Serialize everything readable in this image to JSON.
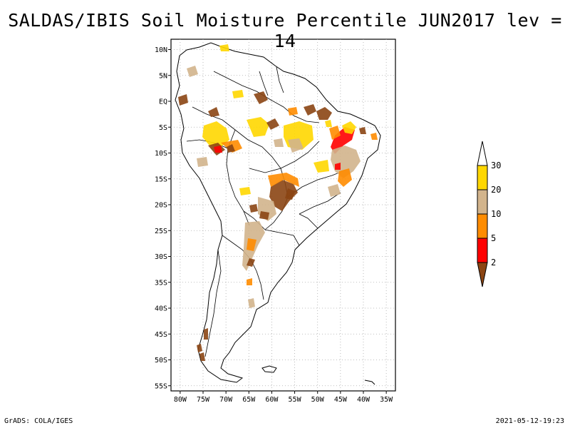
{
  "title": "SALDAS/IBIS Soil Moisture Percentile JUN2017 lev = 14",
  "footer": {
    "left": "GrADS: COLA/IGES",
    "right": "2021-05-12-19:23"
  },
  "map": {
    "lon_range": [
      -82,
      -33
    ],
    "lat_range": [
      -56,
      12
    ],
    "lat_ticks": [
      {
        "value": 10,
        "label": "10N"
      },
      {
        "value": 5,
        "label": "5N"
      },
      {
        "value": 0,
        "label": "EQ"
      },
      {
        "value": -5,
        "label": "5S"
      },
      {
        "value": -10,
        "label": "10S"
      },
      {
        "value": -15,
        "label": "15S"
      },
      {
        "value": -20,
        "label": "20S"
      },
      {
        "value": -25,
        "label": "25S"
      },
      {
        "value": -30,
        "label": "30S"
      },
      {
        "value": -35,
        "label": "35S"
      },
      {
        "value": -40,
        "label": "40S"
      },
      {
        "value": -45,
        "label": "45S"
      },
      {
        "value": -50,
        "label": "50S"
      },
      {
        "value": -55,
        "label": "55S"
      }
    ],
    "lon_ticks": [
      {
        "value": -80,
        "label": "80W"
      },
      {
        "value": -75,
        "label": "75W"
      },
      {
        "value": -70,
        "label": "70W"
      },
      {
        "value": -65,
        "label": "65W"
      },
      {
        "value": -60,
        "label": "60W"
      },
      {
        "value": -55,
        "label": "55W"
      },
      {
        "value": -50,
        "label": "50W"
      },
      {
        "value": -45,
        "label": "45W"
      },
      {
        "value": -40,
        "label": "40W"
      },
      {
        "value": -35,
        "label": "35W"
      }
    ],
    "grid": "dotted"
  },
  "legend": {
    "bins": [
      {
        "color": "#8B4513",
        "label": "2"
      },
      {
        "color": "#FF0000",
        "label": "5"
      },
      {
        "color": "#FF8C00",
        "label": "10"
      },
      {
        "color": "#D2B48C",
        "label": "20"
      },
      {
        "color": "#FFD700",
        "label": "30"
      },
      {
        "color": "#FFFFFF",
        "label": ""
      }
    ]
  },
  "colors": {
    "very_dry": "#8B4513",
    "dry": "#FF0000",
    "moderate": "#FF8C00",
    "mild": "#D2B48C",
    "slight": "#FFD700"
  }
}
